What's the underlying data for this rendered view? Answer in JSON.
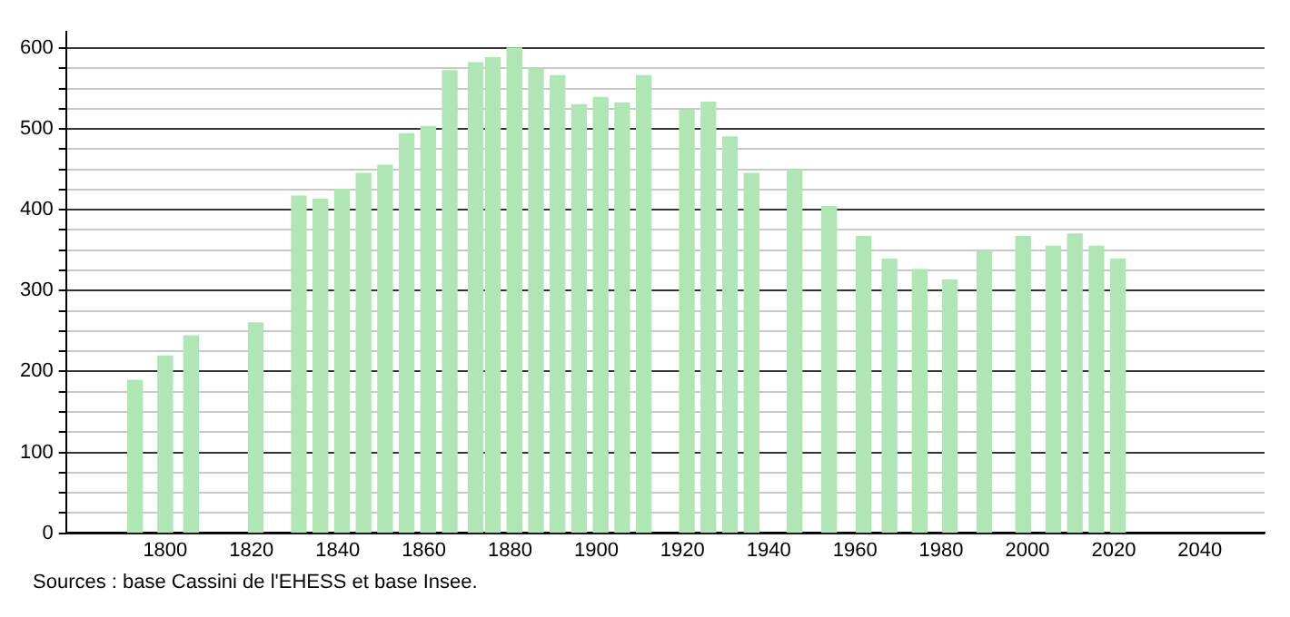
{
  "chart_data": {
    "type": "bar",
    "x": [
      1793,
      1800,
      1806,
      1821,
      1831,
      1836,
      1841,
      1846,
      1851,
      1856,
      1861,
      1866,
      1872,
      1876,
      1881,
      1886,
      1891,
      1896,
      1901,
      1906,
      1911,
      1921,
      1926,
      1931,
      1936,
      1946,
      1954,
      1962,
      1968,
      1975,
      1982,
      1990,
      1999,
      2006,
      2011,
      2016,
      2021
    ],
    "values": [
      189,
      219,
      244,
      260,
      417,
      413,
      425,
      445,
      455,
      494,
      503,
      572,
      582,
      588,
      600,
      574,
      566,
      530,
      539,
      532,
      566,
      523,
      533,
      490,
      445,
      449,
      404,
      367,
      339,
      326,
      313,
      349,
      367,
      355,
      370,
      355,
      339
    ],
    "color": "#b0e6b6",
    "xlim": [
      1777,
      2055
    ],
    "xticks": [
      1800,
      1820,
      1840,
      1860,
      1880,
      1900,
      1920,
      1940,
      1960,
      1980,
      2000,
      2020,
      2040
    ],
    "ylim": [
      0,
      620
    ],
    "yticks": [
      0,
      {
        "value": 25,
        "label": null
      },
      {
        "value": 50,
        "label": null
      },
      {
        "value": 75,
        "label": null
      },
      100,
      {
        "value": 125,
        "label": null
      },
      {
        "value": 150,
        "label": null
      },
      {
        "value": 175,
        "label": null
      },
      200,
      {
        "value": 225,
        "label": null
      },
      {
        "value": 250,
        "label": null
      },
      {
        "value": 275,
        "label": null
      },
      300,
      {
        "value": 325,
        "label": null
      },
      {
        "value": 350,
        "label": null
      },
      {
        "value": 375,
        "label": null
      },
      400,
      {
        "value": 425,
        "label": null
      },
      {
        "value": 450,
        "label": null
      },
      {
        "value": 475,
        "label": null
      },
      500,
      {
        "value": 525,
        "label": null
      },
      {
        "value": 550,
        "label": null
      },
      {
        "value": 575,
        "label": null
      },
      600
    ],
    "grid": "y",
    "legend": false,
    "annotations": [
      "Sources : base Cassini de l'EHESS et base Insee."
    ]
  }
}
